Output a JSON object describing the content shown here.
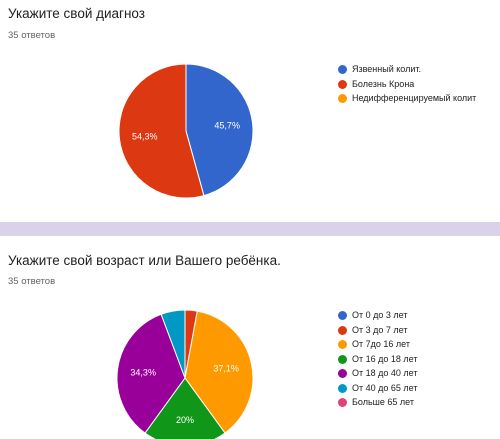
{
  "chart_data": [
    {
      "type": "pie",
      "title": "Укажите свой диагноз",
      "subtitle": "35 ответов",
      "legend_position": "right",
      "labels": [
        "Язвенный колит.",
        "Болезнь Крона",
        "Недифференцируемый колит"
      ],
      "values": [
        45.7,
        54.3,
        0
      ],
      "value_labels": [
        "45,7%",
        "54,3%",
        ""
      ],
      "colors": [
        "#3366cc",
        "#dc3912",
        "#ff9900"
      ]
    },
    {
      "type": "pie",
      "title": "Укажите свой возраст или Вашего ребёнка.",
      "subtitle": "35 ответов",
      "legend_position": "right",
      "labels": [
        "От 0 до 3 лет",
        "От 3 до 7 лет",
        "От 7до 16 лет",
        "От 16 до 18 лет",
        "От 18 до 40 лет",
        "От 40 до 65 лет",
        "Больше 65 лет"
      ],
      "values": [
        0,
        2.9,
        37.1,
        20,
        34.3,
        5.7,
        0
      ],
      "value_labels": [
        "",
        "",
        "37,1%",
        "20%",
        "34,3%",
        "",
        ""
      ],
      "colors": [
        "#3366cc",
        "#dc3912",
        "#ff9900",
        "#109618",
        "#990099",
        "#0099c6",
        "#dd4477"
      ]
    }
  ]
}
